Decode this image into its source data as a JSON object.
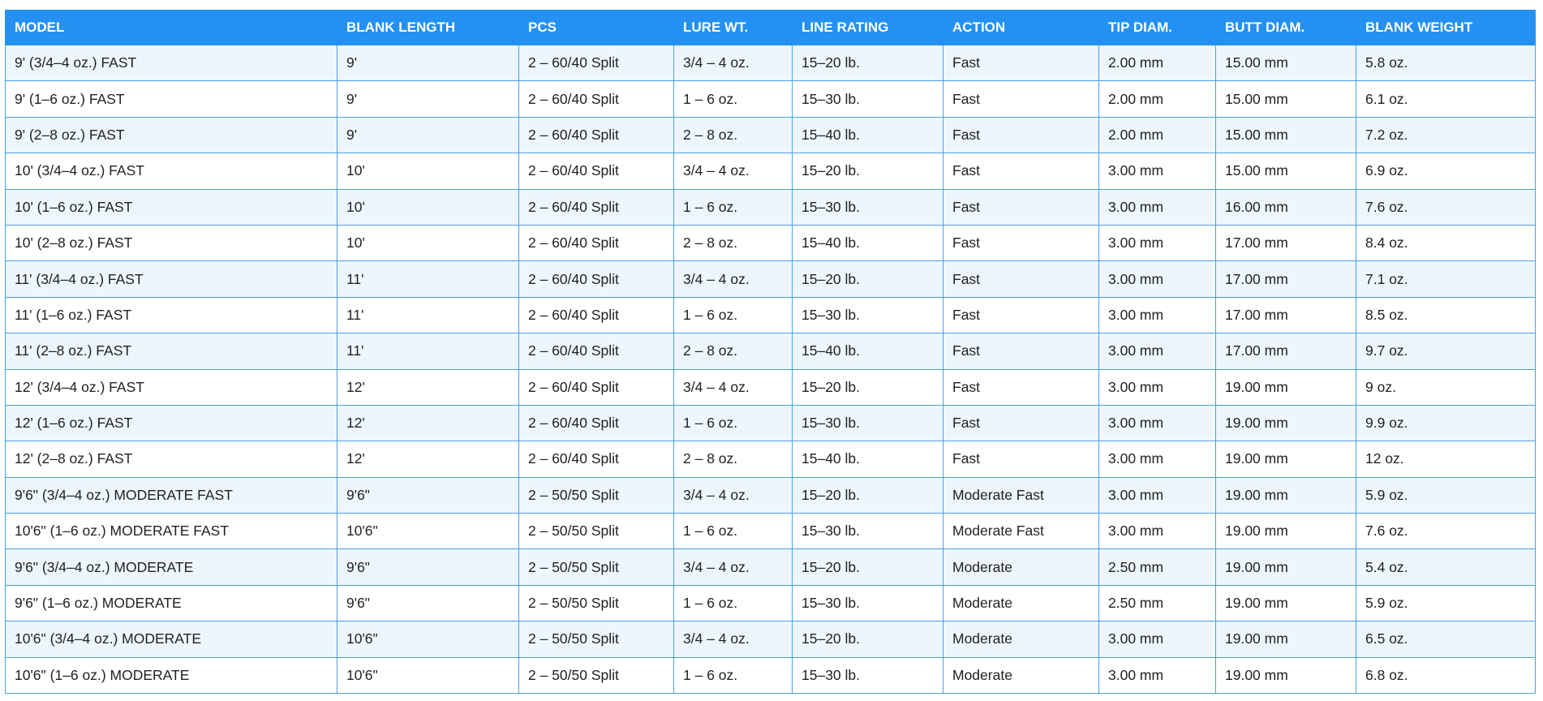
{
  "table": {
    "header": [
      "MODEL",
      "BLANK LENGTH",
      "PCS",
      "LURE WT.",
      "LINE RATING",
      "ACTION",
      "TIP DIAM.",
      "BUTT DIAM.",
      "BLANK WEIGHT"
    ],
    "rows": [
      [
        "9' (3/4–4 oz.) FAST",
        "9'",
        "2 – 60/40 Split",
        "3/4 – 4 oz.",
        "15–20 lb.",
        "Fast",
        "2.00 mm",
        "15.00 mm",
        "5.8 oz."
      ],
      [
        "9' (1–6 oz.) FAST",
        "9'",
        "2 – 60/40 Split",
        "1 – 6 oz.",
        "15–30 lb.",
        "Fast",
        "2.00 mm",
        "15.00 mm",
        "6.1 oz."
      ],
      [
        "9' (2–8 oz.) FAST",
        "9'",
        "2 – 60/40 Split",
        "2 – 8 oz.",
        "15–40 lb.",
        "Fast",
        "2.00 mm",
        "15.00 mm",
        "7.2 oz."
      ],
      [
        "10' (3/4–4 oz.) FAST",
        "10'",
        "2 – 60/40 Split",
        "3/4 – 4 oz.",
        "15–20 lb.",
        "Fast",
        "3.00 mm",
        "15.00 mm",
        "6.9 oz."
      ],
      [
        "10' (1–6 oz.) FAST",
        "10'",
        "2 – 60/40 Split",
        "1 – 6 oz.",
        "15–30 lb.",
        "Fast",
        "3.00 mm",
        "16.00 mm",
        "7.6 oz."
      ],
      [
        "10' (2–8 oz.) FAST",
        "10'",
        "2 – 60/40 Split",
        "2 – 8 oz.",
        "15–40 lb.",
        "Fast",
        "3.00 mm",
        "17.00 mm",
        "8.4 oz."
      ],
      [
        "11' (3/4–4 oz.) FAST",
        "11'",
        "2 – 60/40 Split",
        "3/4 – 4 oz.",
        "15–20 lb.",
        "Fast",
        "3.00 mm",
        "17.00 mm",
        "7.1 oz."
      ],
      [
        "11' (1–6 oz.) FAST",
        "11'",
        "2 – 60/40 Split",
        "1 – 6 oz.",
        "15–30 lb.",
        "Fast",
        "3.00 mm",
        "17.00 mm",
        "8.5 oz."
      ],
      [
        "11' (2–8 oz.) FAST",
        "11'",
        "2 – 60/40 Split",
        "2 – 8 oz.",
        "15–40 lb.",
        "Fast",
        "3.00 mm",
        "17.00 mm",
        "9.7 oz."
      ],
      [
        "12' (3/4–4 oz.) FAST",
        "12'",
        "2 – 60/40 Split",
        "3/4 – 4 oz.",
        "15–20 lb.",
        "Fast",
        "3.00 mm",
        "19.00 mm",
        "9 oz."
      ],
      [
        "12' (1–6 oz.) FAST",
        "12'",
        "2 – 60/40 Split",
        "1 – 6 oz.",
        "15–30 lb.",
        "Fast",
        "3.00 mm",
        "19.00 mm",
        "9.9 oz."
      ],
      [
        "12' (2–8 oz.) FAST",
        "12'",
        "2 – 60/40 Split",
        "2 – 8 oz.",
        "15–40 lb.",
        "Fast",
        "3.00 mm",
        "19.00 mm",
        "12 oz."
      ],
      [
        "9'6\" (3/4–4 oz.) MODERATE FAST",
        "9'6\"",
        "2 – 50/50 Split",
        "3/4 – 4 oz.",
        "15–20 lb.",
        "Moderate Fast",
        "3.00 mm",
        "19.00 mm",
        "5.9 oz."
      ],
      [
        "10'6\" (1–6 oz.) MODERATE FAST",
        "10'6\"",
        "2 – 50/50 Split",
        "1 – 6 oz.",
        "15–30 lb.",
        "Moderate Fast",
        "3.00 mm",
        "19.00 mm",
        "7.6 oz."
      ],
      [
        "9'6\" (3/4–4 oz.) MODERATE",
        "9'6\"",
        "2 – 50/50 Split",
        "3/4 – 4 oz.",
        "15–20 lb.",
        "Moderate",
        "2.50 mm",
        "19.00 mm",
        "5.4 oz."
      ],
      [
        "9'6\" (1–6 oz.) MODERATE",
        "9'6\"",
        "2 – 50/50 Split",
        "1 – 6 oz.",
        "15–30 lb.",
        "Moderate",
        "2.50 mm",
        "19.00 mm",
        "5.9 oz."
      ],
      [
        "10'6\" (3/4–4 oz.) MODERATE",
        "10'6\"",
        "2 – 50/50 Split",
        "3/4 – 4 oz.",
        "15–20 lb.",
        "Moderate",
        "3.00 mm",
        "19.00 mm",
        "6.5 oz."
      ],
      [
        "10'6\" (1–6 oz.) MODERATE",
        "10'6\"",
        "2 – 50/50 Split",
        "1 – 6 oz.",
        "15–30 lb.",
        "Moderate",
        "3.00 mm",
        "19.00 mm",
        "6.8 oz."
      ]
    ]
  }
}
